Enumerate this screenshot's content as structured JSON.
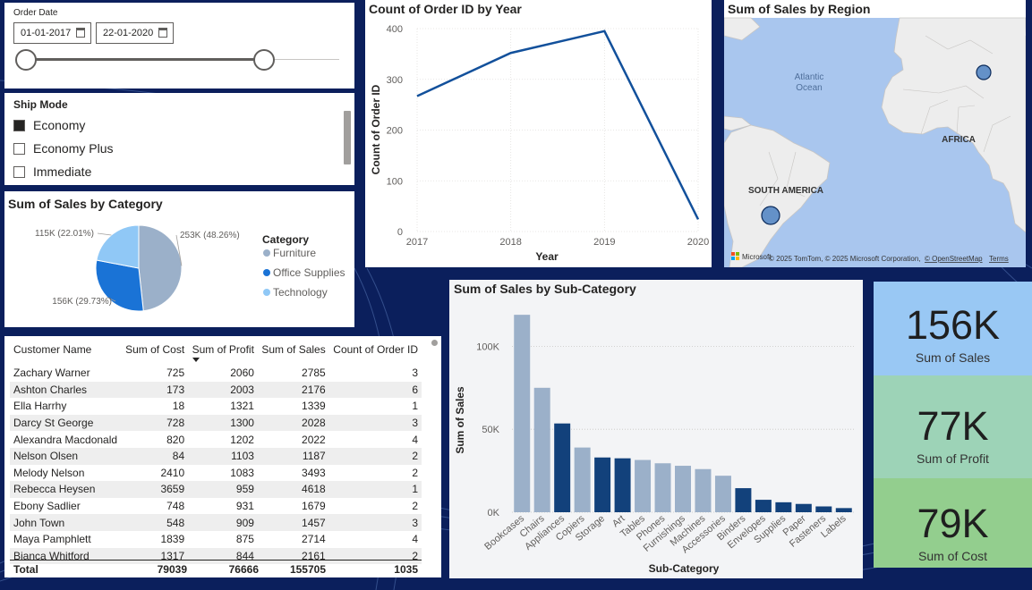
{
  "date_slicer": {
    "label": "Order Date",
    "start": "01-01-2017",
    "end": "22-01-2020"
  },
  "ship_mode": {
    "label": "Ship Mode",
    "items": [
      {
        "label": "Economy",
        "checked": true
      },
      {
        "label": "Economy Plus",
        "checked": false
      },
      {
        "label": "Immediate",
        "checked": false
      }
    ]
  },
  "category_chart": {
    "title": "Sum of Sales by Category",
    "legend_title": "Category",
    "chart_data": {
      "type": "pie",
      "categories": [
        "Furniture",
        "Office Supplies",
        "Technology"
      ],
      "values": [
        48.26,
        29.73,
        22.01
      ],
      "labels": [
        "253K (48.26%)",
        "156K (29.73%)",
        "115K (22.01%)"
      ],
      "colors": [
        "#9bb0c9",
        "#1a73d6",
        "#90c8f6"
      ],
      "legend": "right"
    }
  },
  "year_chart": {
    "title": "Count of Order ID by Year",
    "chart_data": {
      "type": "line",
      "x": [
        "2017",
        "2018",
        "2019",
        "2020"
      ],
      "values": [
        267,
        352,
        395,
        24
      ],
      "xlabel": "Year",
      "ylabel": "Count of Order ID",
      "yticks": [
        "0",
        "100",
        "200",
        "300",
        "400"
      ],
      "ylim": [
        0,
        400
      ],
      "color": "#12509b"
    }
  },
  "map": {
    "title": "Sum of Sales by Region",
    "labels": {
      "ocean_line1": "Atlantic",
      "ocean_line2": "Ocean",
      "africa": "AFRICA",
      "south_america": "SOUTH AMERICA"
    },
    "brand": "Microsoft",
    "attribution": "© 2025 TomTom, © 2025 Microsoft Corporation,",
    "osm": "© OpenStreetMap",
    "terms": "Terms"
  },
  "table": {
    "headers": [
      "Customer Name",
      "Sum of Cost",
      "Sum of Profit",
      "Sum of Sales",
      "Count of Order ID"
    ],
    "rows": [
      [
        "Zachary Warner",
        "725",
        "2060",
        "2785",
        "3"
      ],
      [
        "Ashton Charles",
        "173",
        "2003",
        "2176",
        "6"
      ],
      [
        "Ella Harrhy",
        "18",
        "1321",
        "1339",
        "1"
      ],
      [
        "Darcy St George",
        "728",
        "1300",
        "2028",
        "3"
      ],
      [
        "Alexandra Macdonald",
        "820",
        "1202",
        "2022",
        "4"
      ],
      [
        "Nelson Olsen",
        "84",
        "1103",
        "1187",
        "2"
      ],
      [
        "Melody Nelson",
        "2410",
        "1083",
        "3493",
        "2"
      ],
      [
        "Rebecca Heysen",
        "3659",
        "959",
        "4618",
        "1"
      ],
      [
        "Ebony Sadlier",
        "748",
        "931",
        "1679",
        "2"
      ],
      [
        "John Town",
        "548",
        "909",
        "1457",
        "3"
      ],
      [
        "Maya Pamphlett",
        "1839",
        "875",
        "2714",
        "4"
      ],
      [
        "Bianca Whitford",
        "1317",
        "844",
        "2161",
        "2"
      ]
    ],
    "total": [
      "Total",
      "79039",
      "76666",
      "155705",
      "1035"
    ]
  },
  "subcat_chart": {
    "title": "Sum of Sales by Sub-Category",
    "chart_data": {
      "type": "bar",
      "categories": [
        "Bookcases",
        "Chairs",
        "Appliances",
        "Copiers",
        "Storage",
        "Art",
        "Tables",
        "Phones",
        "Furnishings",
        "Machines",
        "Accessories",
        "Binders",
        "Envelopes",
        "Supplies",
        "Paper",
        "Fasteners",
        "Labels"
      ],
      "values": [
        119000,
        75000,
        53500,
        39000,
        33000,
        32500,
        31500,
        29500,
        28000,
        26000,
        22000,
        14500,
        7500,
        6000,
        5000,
        3500,
        2500
      ],
      "series_category": [
        "Furniture",
        "Furniture",
        "Office Supplies",
        "Technology",
        "Office Supplies",
        "Office Supplies",
        "Furniture",
        "Technology",
        "Furniture",
        "Technology",
        "Technology",
        "Office Supplies",
        "Office Supplies",
        "Office Supplies",
        "Office Supplies",
        "Office Supplies",
        "Office Supplies"
      ],
      "colors": {
        "Furniture": "#9bb0c9",
        "Office Supplies": "#12417b",
        "Technology": "#9bb0c9"
      },
      "xlabel": "Sub-Category",
      "ylabel": "Sum of Sales",
      "yticks": [
        "0K",
        "50K",
        "100K"
      ],
      "ylim": [
        0,
        125000
      ]
    }
  },
  "kpis": [
    {
      "value": "156K",
      "label": "Sum of Sales",
      "color": "#99c8f4"
    },
    {
      "value": "77K",
      "label": "Sum of Profit",
      "color": "#9dd3b7"
    },
    {
      "value": "79K",
      "label": "Sum of Cost",
      "color": "#93ce8e"
    }
  ]
}
